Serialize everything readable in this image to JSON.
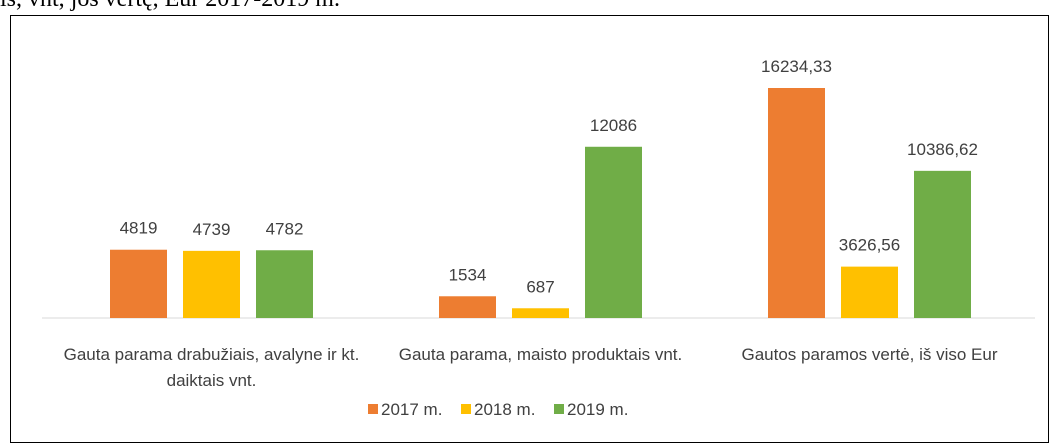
{
  "chart_data": {
    "type": "bar",
    "title": "is, vnt, jos vertę, Eur 2017-2019 m.",
    "categories": [
      "Gauta parama drabužiais, avalyne ir kt. daiktais vnt.",
      "Gauta parama, maisto produktais vnt.",
      "Gautos paramos vertė, iš viso Eur"
    ],
    "series": [
      {
        "name": "2017 m.",
        "color": "#ed7d31",
        "values": [
          4819,
          1534,
          16234.33
        ],
        "value_labels": [
          "4819",
          "1534",
          "16234,33"
        ]
      },
      {
        "name": "2018 m.",
        "color": "#ffc000",
        "values": [
          4739,
          687,
          3626.56
        ],
        "value_labels": [
          "4739",
          "687",
          "3626,56"
        ]
      },
      {
        "name": "2019 m.",
        "color": "#70ad47",
        "values": [
          4782,
          12086,
          10386.62
        ],
        "value_labels": [
          "4782",
          "12086",
          "10386,62"
        ]
      }
    ],
    "legend": "bottom"
  }
}
